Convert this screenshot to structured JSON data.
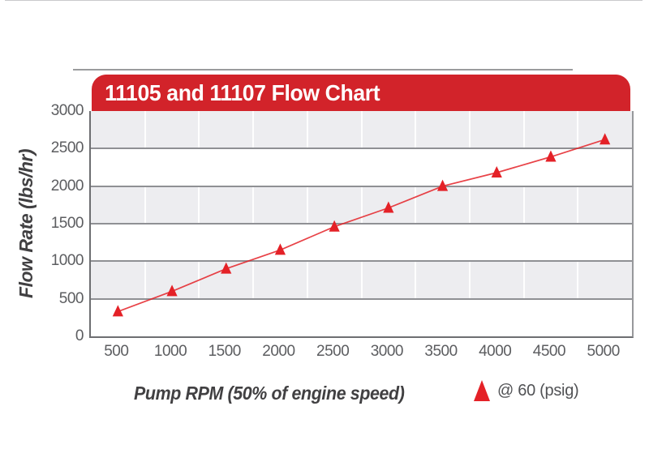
{
  "header": {
    "title": "11105 and 11107 Flow Chart"
  },
  "legend": {
    "label": "@ 60 (psig)",
    "marker_icon": "red-triangle"
  },
  "colors": {
    "banner_red": "#d2232a",
    "series_red": "#e42127",
    "band_gray": "#ededf0",
    "hgrid_gray": "#8f9094",
    "vgrid_white": "#fbfbfc",
    "axis_gray": "#6d6e71",
    "tick_text": "#5c5d60",
    "title_text": "#414042",
    "legend_text": "#515255"
  },
  "chart_data": {
    "type": "line",
    "title": "11105 and 11107 Flow Chart",
    "xlabel": "Pump RPM (50% of engine speed)",
    "ylabel": "Flow Rate (lbs/hr)",
    "x": [
      500,
      1000,
      1500,
      2000,
      2500,
      3000,
      3500,
      4000,
      4500,
      5000
    ],
    "xtick_labels": [
      "500",
      "1000",
      "1500",
      "2000",
      "2500",
      "3000",
      "3500",
      "4000",
      "4500",
      "5000"
    ],
    "yticks": [
      0,
      500,
      1000,
      1500,
      2000,
      2500,
      3000
    ],
    "ytick_labels": [
      "0",
      "500",
      "1000",
      "1500",
      "2000",
      "2500",
      "3000"
    ],
    "ylim": [
      0,
      3000
    ],
    "series": [
      {
        "name": "@ 60 (psig)",
        "marker": "triangle",
        "color": "#e42127",
        "values": [
          330,
          600,
          900,
          1150,
          1460,
          1710,
          2000,
          2180,
          2390,
          2620
        ]
      }
    ],
    "grid": "horizontal-bands-alternating",
    "legend_position": "bottom-right"
  }
}
